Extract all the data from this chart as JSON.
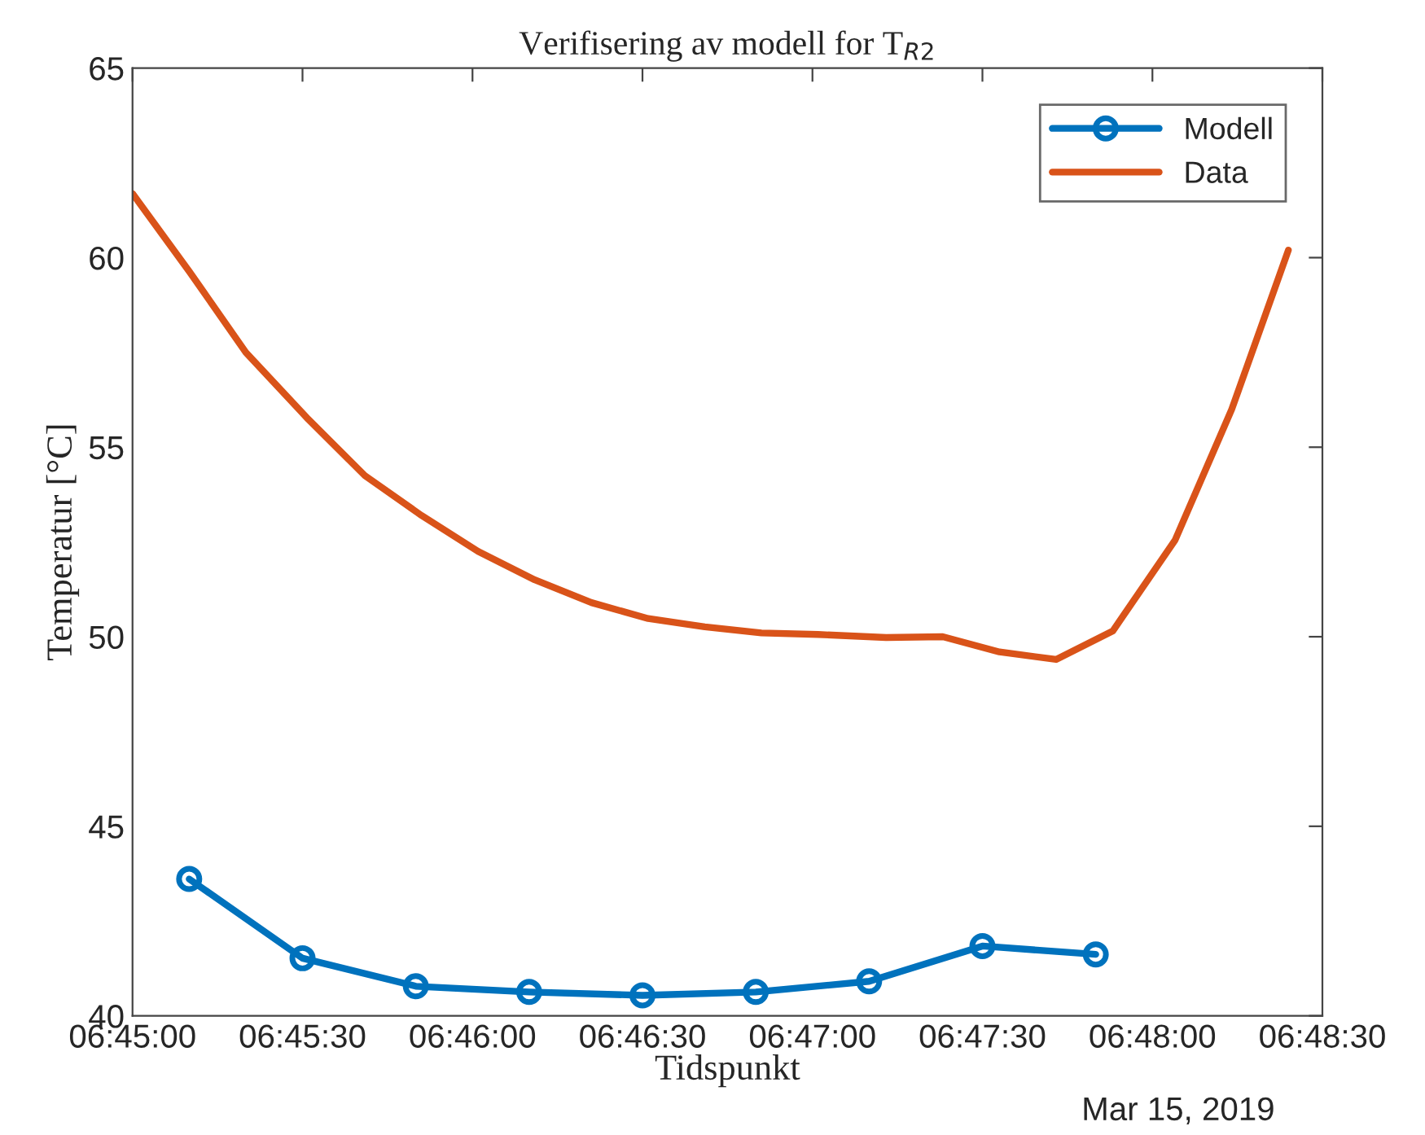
{
  "chart_data": {
    "type": "line",
    "title": "Verifisering av modell for T$_{R2}$",
    "xlabel": "Tidspunkt",
    "ylabel": "Temperatur [°C]",
    "annotations": [
      "Mar 15, 2019"
    ],
    "xlim": [
      "2019-03-15T06:45:00",
      "2019-03-15T06:48:30"
    ],
    "xticks": [
      {
        "value": "2019-03-15T06:45:00",
        "label": "06:45:00"
      },
      {
        "value": "2019-03-15T06:45:30",
        "label": "06:45:30"
      },
      {
        "value": "2019-03-15T06:46:00",
        "label": "06:46:00"
      },
      {
        "value": "2019-03-15T06:46:30",
        "label": "06:46:30"
      },
      {
        "value": "2019-03-15T06:47:00",
        "label": "06:47:00"
      },
      {
        "value": "2019-03-15T06:47:30",
        "label": "06:47:30"
      },
      {
        "value": "2019-03-15T06:48:00",
        "label": "06:48:00"
      },
      {
        "value": "2019-03-15T06:48:30",
        "label": "06:48:30"
      }
    ],
    "ylim": [
      40,
      65
    ],
    "yticks": [
      40,
      45,
      50,
      55,
      60,
      65
    ],
    "grid": false,
    "legend": "top right",
    "series": [
      {
        "name": "Modell",
        "color": "#0072bd",
        "marker": "circle",
        "x": [
          "2019-03-15T06:45:10",
          "2019-03-15T06:45:30",
          "2019-03-15T06:45:50",
          "2019-03-15T06:46:10",
          "2019-03-15T06:46:30",
          "2019-03-15T06:46:50",
          "2019-03-15T06:47:10",
          "2019-03-15T06:47:30",
          "2019-03-15T06:47:50"
        ],
        "values": [
          43.61,
          41.52,
          40.78,
          40.63,
          40.54,
          40.63,
          40.91,
          41.84,
          41.62
        ]
      },
      {
        "name": "Data",
        "color": "#d95319",
        "marker": "none",
        "x": [
          "2019-03-15T06:45:00",
          "2019-03-15T06:45:10",
          "2019-03-15T06:45:20",
          "2019-03-15T06:45:31",
          "2019-03-15T06:45:41",
          "2019-03-15T06:45:51",
          "2019-03-15T06:46:01",
          "2019-03-15T06:46:11",
          "2019-03-15T06:46:21",
          "2019-03-15T06:46:31",
          "2019-03-15T06:46:41",
          "2019-03-15T06:46:51",
          "2019-03-15T06:47:01",
          "2019-03-15T06:47:13",
          "2019-03-15T06:47:23",
          "2019-03-15T06:47:33",
          "2019-03-15T06:47:43",
          "2019-03-15T06:47:53",
          "2019-03-15T06:48:04",
          "2019-03-15T06:48:14",
          "2019-03-15T06:48:24"
        ],
        "values": [
          61.69,
          59.64,
          57.5,
          55.74,
          54.25,
          53.2,
          52.25,
          51.5,
          50.9,
          50.48,
          50.26,
          50.1,
          50.06,
          49.98,
          50.0,
          49.6,
          49.4,
          50.15,
          52.55,
          56.0,
          60.2
        ]
      }
    ]
  }
}
